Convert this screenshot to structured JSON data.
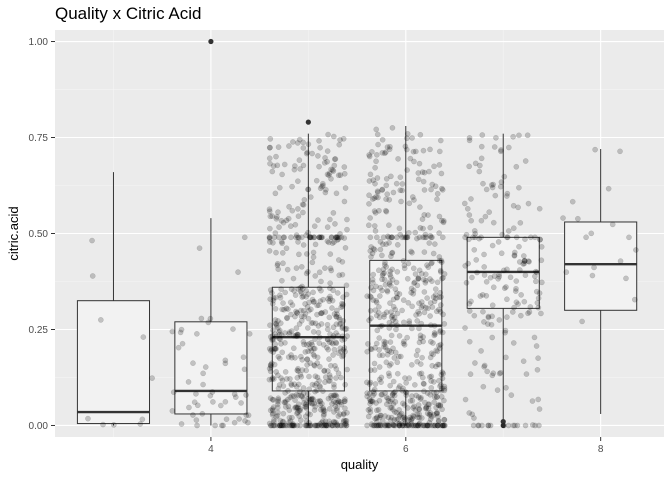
{
  "chart_data": {
    "type": "box",
    "title": "Quality x Citric Acid",
    "xlabel": "quality",
    "ylabel": "citric.acid",
    "x_ticks": [
      4,
      6,
      8
    ],
    "y_ticks": [
      "0.00",
      "0.25",
      "0.50",
      "0.75",
      "1.00"
    ],
    "xlim": [
      2.4,
      8.65
    ],
    "ylim": [
      -0.03,
      1.03
    ],
    "boxes": [
      {
        "quality": 3,
        "min": 0.0,
        "q1": 0.005,
        "median": 0.035,
        "q3": 0.325,
        "max": 0.66,
        "outliers": []
      },
      {
        "quality": 4,
        "min": 0.0,
        "q1": 0.03,
        "median": 0.09,
        "q3": 0.27,
        "max": 0.54,
        "outliers": [
          1.0
        ]
      },
      {
        "quality": 5,
        "min": 0.0,
        "q1": 0.09,
        "median": 0.23,
        "q3": 0.36,
        "max": 0.76,
        "outliers": [
          0.79
        ]
      },
      {
        "quality": 6,
        "min": 0.0,
        "q1": 0.09,
        "median": 0.26,
        "q3": 0.43,
        "max": 0.78,
        "outliers": []
      },
      {
        "quality": 7,
        "min": 0.0,
        "q1": 0.305,
        "median": 0.4,
        "q3": 0.49,
        "max": 0.76,
        "outliers": [
          0.0,
          0.01
        ]
      },
      {
        "quality": 8,
        "min": 0.03,
        "q1": 0.3,
        "median": 0.42,
        "q3": 0.53,
        "max": 0.72,
        "outliers": []
      }
    ],
    "jitter_points": [
      {
        "quality": 3,
        "count": 10
      },
      {
        "quality": 4,
        "count": 53
      },
      {
        "quality": 5,
        "count": 681
      },
      {
        "quality": 6,
        "count": 638
      },
      {
        "quality": 7,
        "count": 199
      },
      {
        "quality": 8,
        "count": 18
      }
    ],
    "point_color": "#000000",
    "point_opacity": 0.2,
    "panel_background": "#EBEBEB",
    "grid": true,
    "legend": "none"
  }
}
